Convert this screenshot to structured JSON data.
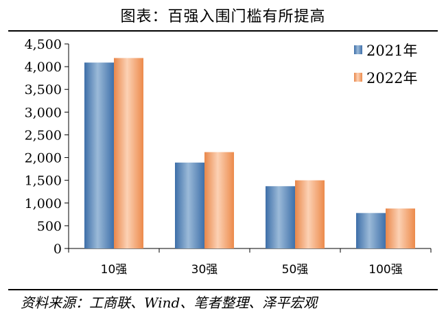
{
  "header": {
    "title": "图表：百强入围门槛有所提高"
  },
  "footer": {
    "source": "资料来源：工商联、Wind、笔者整理、泽平宏观"
  },
  "colors": {
    "series_2021": "#4f81bd",
    "series_2022": "#f79646",
    "axis": "#000000"
  },
  "chart_data": {
    "type": "bar",
    "title": "图表：百强入围门槛有所提高",
    "categories": [
      "10强",
      "30强",
      "50强",
      "100强"
    ],
    "series": [
      {
        "name": "2021年",
        "values": [
          4090,
          1890,
          1370,
          780
        ]
      },
      {
        "name": "2022年",
        "values": [
          4190,
          2120,
          1500,
          880
        ]
      }
    ],
    "ylim": [
      0,
      4500
    ],
    "yticks": [
      0,
      500,
      1000,
      1500,
      2000,
      2500,
      3000,
      3500,
      4000,
      4500
    ],
    "ytick_labels": [
      "0",
      "500",
      "1,000",
      "1,500",
      "2,000",
      "2,500",
      "3,000",
      "3,500",
      "4,000",
      "4,500"
    ],
    "xlabel": "",
    "ylabel": "",
    "grid": false,
    "legend": "top-right"
  }
}
